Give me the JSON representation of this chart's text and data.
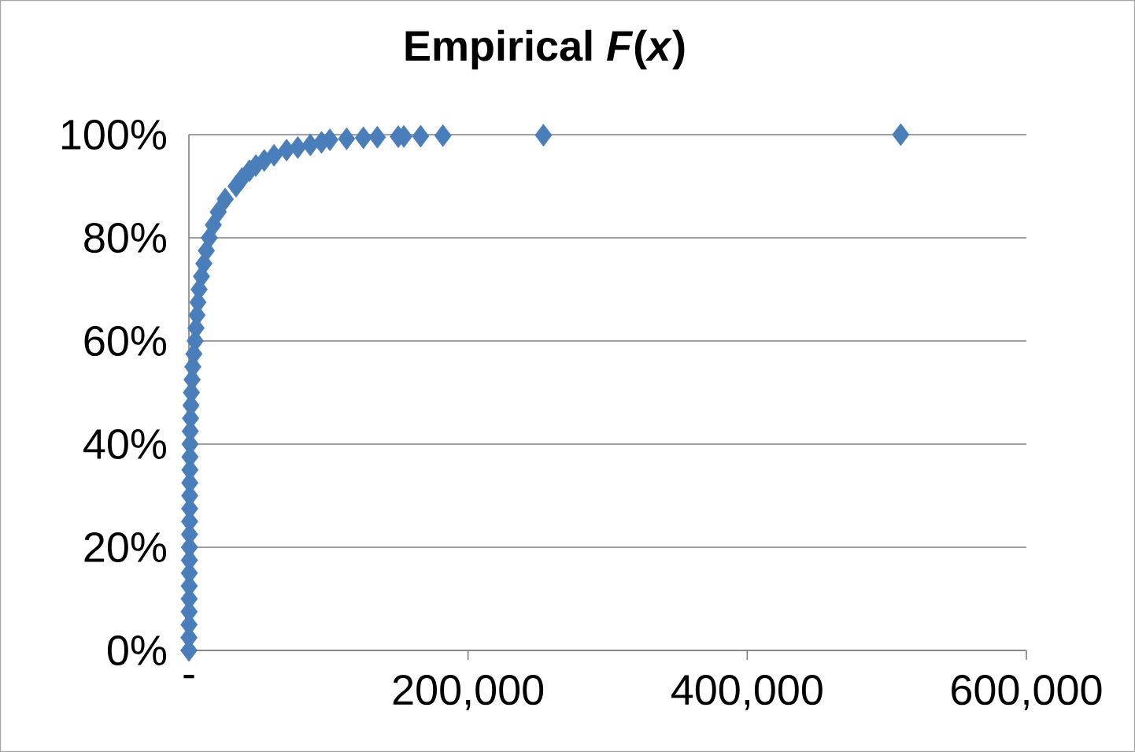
{
  "chart_data": {
    "type": "scatter",
    "title": "Empirical *F*(*x*)",
    "x": [
      0,
      50,
      100,
      150,
      200,
      250,
      300,
      350,
      400,
      450,
      500,
      550,
      600,
      650,
      700,
      750,
      800,
      1000,
      1200,
      1500,
      1800,
      2300,
      2800,
      3600,
      4500,
      5100,
      5800,
      6500,
      7300,
      9000,
      10700,
      12500,
      14600,
      17500,
      21000,
      26000,
      33800,
      38000,
      43400,
      48000,
      54000,
      61000,
      70000,
      78000,
      87000,
      95000,
      101000,
      113000,
      125000,
      135000,
      150000,
      154000,
      166000,
      182000,
      254000,
      510000
    ],
    "values": [
      0,
      2.5,
      5,
      7.5,
      10,
      12.5,
      15,
      17.5,
      20,
      22.5,
      25,
      27.5,
      30,
      32.5,
      35,
      37.5,
      40,
      42.5,
      45,
      47.5,
      50,
      52.5,
      55,
      57.5,
      60,
      62.5,
      65,
      67.5,
      70,
      72.5,
      75,
      77.5,
      80,
      82.5,
      85,
      87.5,
      90,
      91.5,
      93,
      94,
      95,
      96,
      97,
      97.5,
      98,
      98.5,
      99,
      99.2,
      99.4,
      99.5,
      99.6,
      99.65,
      99.7,
      99.8,
      99.9,
      100
    ],
    "color": "#4a7ebb",
    "marker": "diamond",
    "grid": "y",
    "xlim": [
      0,
      600000
    ],
    "ylim": [
      0,
      100
    ],
    "xticks": [
      {
        "value": 0,
        "label": "-"
      },
      {
        "value": 200000,
        "label": "200,000"
      },
      {
        "value": 400000,
        "label": "400,000"
      },
      {
        "value": 600000,
        "label": "600,000"
      }
    ],
    "yticks": [
      {
        "value": 0,
        "label": "0%"
      },
      {
        "value": 20,
        "label": "20%"
      },
      {
        "value": 40,
        "label": "40%"
      },
      {
        "value": 60,
        "label": "60%"
      },
      {
        "value": 80,
        "label": "80%"
      },
      {
        "value": 100,
        "label": "100%"
      }
    ]
  }
}
